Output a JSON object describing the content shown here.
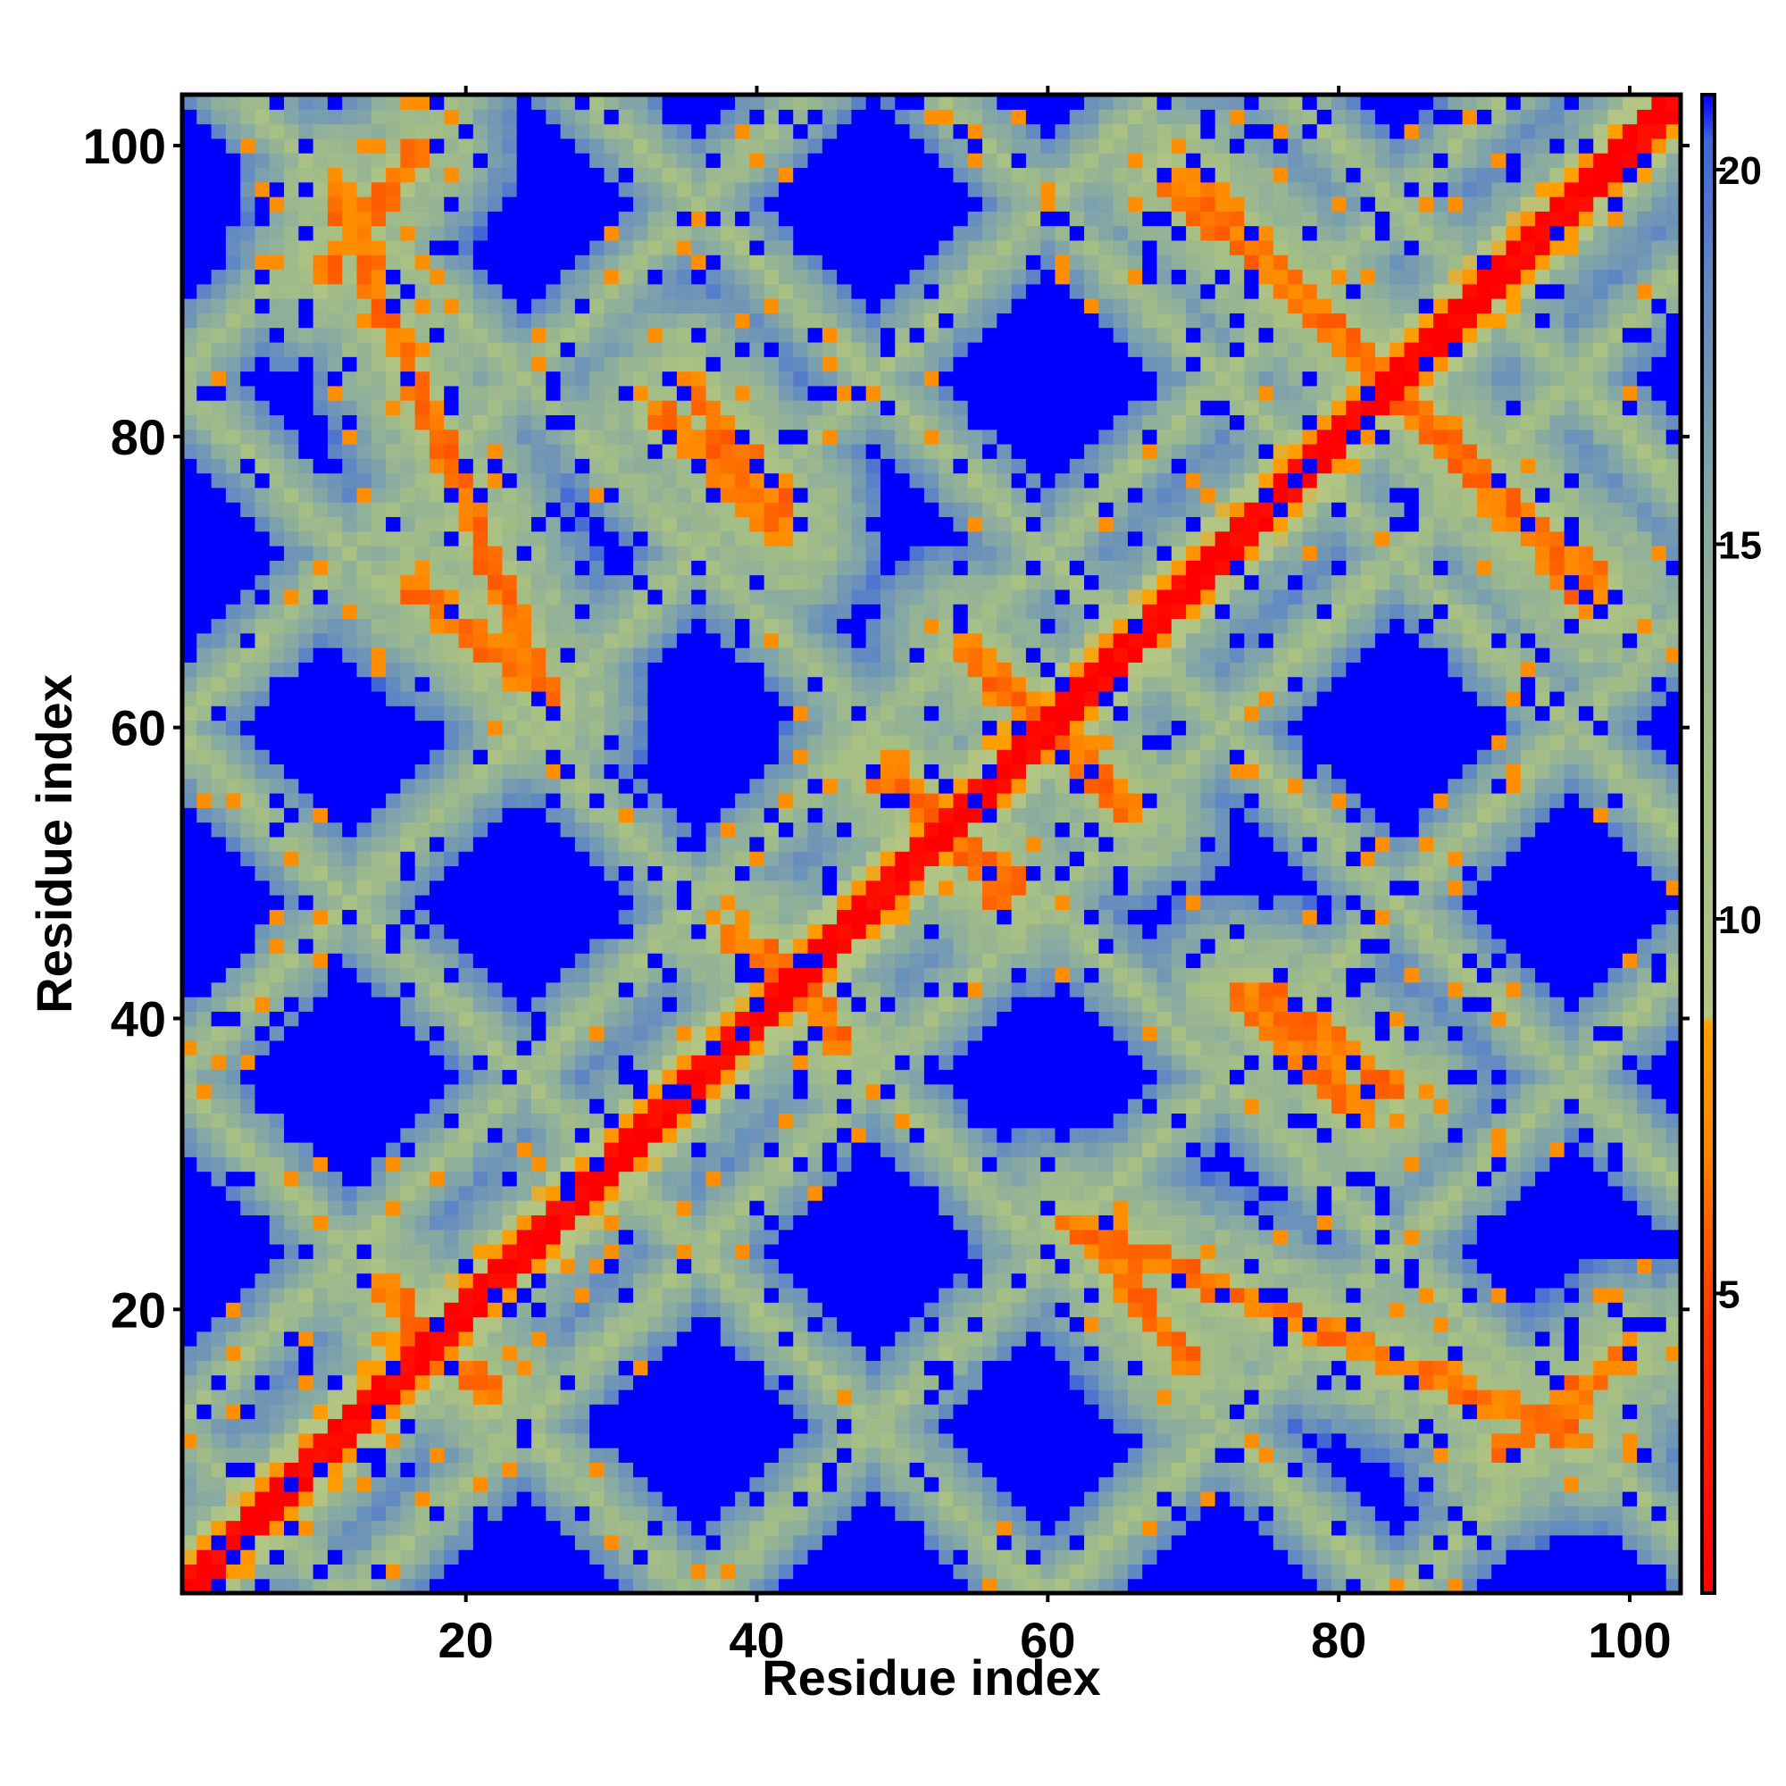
{
  "chart_data": {
    "type": "heatmap",
    "title": "",
    "xlabel": "Residue index",
    "ylabel": "Residue index",
    "xlim": [
      1,
      103
    ],
    "ylim": [
      1,
      103
    ],
    "x_ticks": [
      20,
      40,
      60,
      80,
      100
    ],
    "y_ticks": [
      20,
      40,
      60,
      80,
      100
    ],
    "colorbar": {
      "ticks": [
        5,
        10,
        15,
        20
      ],
      "range": [
        1,
        21
      ],
      "colors": {
        "low": "#ff0000",
        "mid_low": "#ff9900",
        "mid": "#a6bf84",
        "mid_high": "#5f87c4",
        "high": "#0000ff"
      }
    },
    "n_residues": 103,
    "value_meaning": "pairwise distance; diagonal is minimal, blue regions are large distances",
    "contact_features": [
      {
        "kind": "diagonal",
        "from": [
          1,
          1
        ],
        "to": [
          103,
          103
        ],
        "value": 1
      },
      {
        "kind": "antiparallel-band",
        "from": [
          11,
          97
        ],
        "to": [
          26,
          61
        ],
        "value": 6
      },
      {
        "kind": "antiparallel-band",
        "from": [
          33,
          82
        ],
        "to": [
          42,
          73
        ],
        "value": 6
      },
      {
        "kind": "antiparallel-band",
        "from": [
          68,
          98
        ],
        "to": [
          84,
          83
        ],
        "value": 6
      },
      {
        "kind": "antiparallel-band",
        "from": [
          85,
          82
        ],
        "to": [
          98,
          70
        ],
        "value": 6
      },
      {
        "kind": "antiparallel-band",
        "from": [
          14,
          22
        ],
        "to": [
          19,
          16
        ],
        "value": 6
      },
      {
        "kind": "antiparallel-band",
        "from": [
          40,
          45
        ],
        "to": [
          46,
          38
        ],
        "value": 6
      },
      {
        "kind": "antiparallel-band",
        "from": [
          48,
          57
        ],
        "to": [
          58,
          49
        ],
        "value": 6
      },
      {
        "kind": "antiparallel-band",
        "from": [
          55,
          65
        ],
        "to": [
          66,
          54
        ],
        "value": 6
      },
      {
        "kind": "antiparallel-band",
        "from": [
          75,
          42
        ],
        "to": [
          84,
          35
        ],
        "value": 6
      },
      {
        "kind": "antiparallel-band",
        "from": [
          62,
          26
        ],
        "to": [
          70,
          16
        ],
        "value": 6
      },
      {
        "kind": "antiparallel-band",
        "from": [
          91,
          10
        ],
        "to": [
          100,
          17
        ],
        "value": 6
      }
    ]
  }
}
